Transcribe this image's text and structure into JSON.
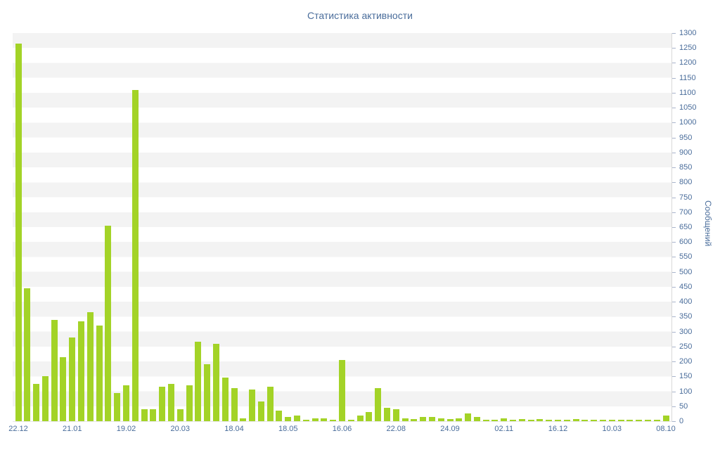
{
  "page": {
    "title": "Статистика активности"
  },
  "chart_data": {
    "type": "bar",
    "title": "Статистика активности",
    "xlabel": "",
    "ylabel": "Сообщений",
    "ylim": [
      0,
      1300
    ],
    "ytick_step": 50,
    "grid": "alternating horizontal bands every 50 units",
    "legend": "none",
    "bar_color": "#a3d327",
    "axis_text_color": "#4a6d9b",
    "categories": [
      "22.12",
      "21.01",
      "19.02",
      "20.03",
      "18.04",
      "18.05",
      "16.06",
      "22.08",
      "24.09",
      "02.11",
      "16.12",
      "10.03",
      "08.10"
    ],
    "label_every": 6,
    "values": [
      1265,
      445,
      125,
      150,
      340,
      215,
      280,
      335,
      365,
      320,
      655,
      95,
      120,
      1110,
      40,
      40,
      115,
      125,
      40,
      120,
      265,
      190,
      260,
      145,
      110,
      10,
      105,
      65,
      115,
      35,
      15,
      20,
      5,
      10,
      10,
      5,
      205,
      5,
      20,
      30,
      110,
      45,
      40,
      10,
      8,
      15,
      15,
      10,
      8,
      10,
      25,
      15,
      5,
      5,
      10,
      5,
      8,
      3,
      8,
      3,
      3,
      3,
      8,
      3,
      3,
      3,
      3,
      3,
      3,
      5,
      3,
      3,
      20
    ]
  }
}
